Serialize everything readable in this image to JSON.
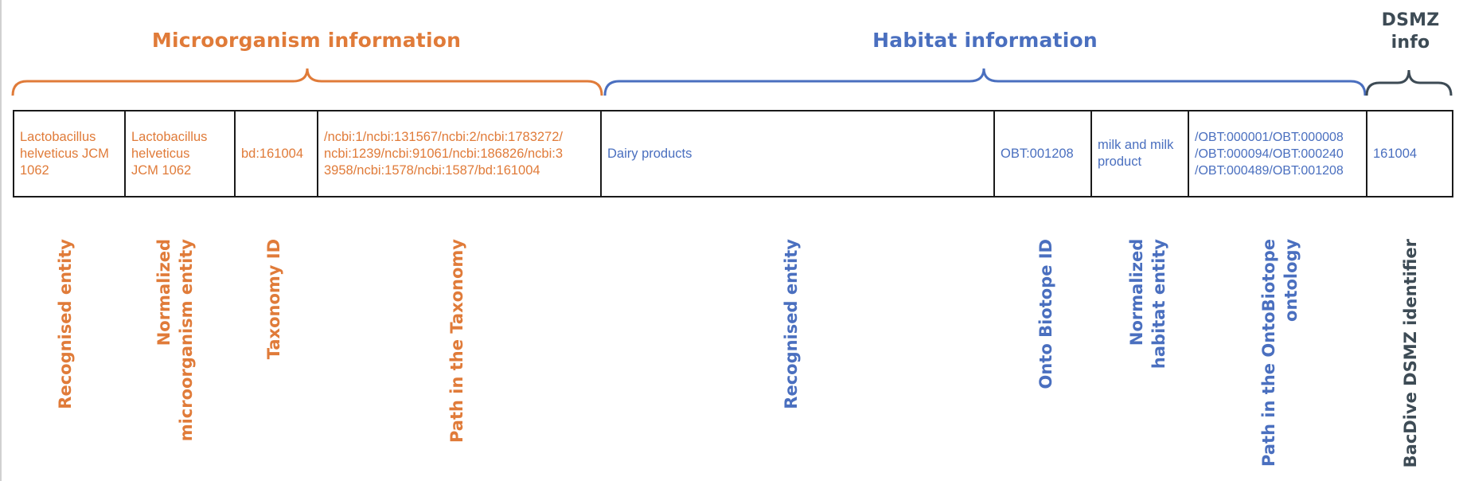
{
  "groups": {
    "microorganism": {
      "title": "Microorganism information",
      "color": "#E07B39"
    },
    "habitat": {
      "title": "Habitat information",
      "color": "#4A6FBF"
    },
    "dsmz": {
      "title_line1": "DSMZ",
      "title_line2": "info",
      "color": "#3D4B55"
    }
  },
  "row": {
    "recognised_entity_micro": {
      "line1": "Lactobacillus",
      "line2": "helveticus JCM",
      "line3": "1062"
    },
    "normalized_micro_entity": {
      "line1": "Lactobacillus",
      "line2": "helveticus",
      "line3": "JCM 1062"
    },
    "taxonomy_id": "bd:161004",
    "taxonomy_path": {
      "line1": "/ncbi:1/ncbi:131567/ncbi:2/ncbi:1783272/",
      "line2": "ncbi:1239/ncbi:91061/ncbi:186826/ncbi:3",
      "line3": "3958/ncbi:1578/ncbi:1587/bd:161004"
    },
    "recognised_entity_habitat": "Dairy products",
    "onto_biotope_id": "OBT:001208",
    "normalized_habitat_entity": {
      "line1": "milk and milk",
      "line2": "product"
    },
    "ontobiotope_path": {
      "line1": "/OBT:000001/OBT:000008",
      "line2": "/OBT:000094/OBT:000240",
      "line3": "/OBT:000489/OBT:001208"
    },
    "bacdive_id": "161004"
  },
  "labels": {
    "recognised_entity_micro": "Recognised entity",
    "normalized_micro_entity": {
      "line1": "Normalized",
      "line2": "microorganism entity"
    },
    "taxonomy_id": "Taxonomy ID",
    "taxonomy_path": "Path in the Taxonomy",
    "recognised_entity_habitat": "Recognised entity",
    "onto_biotope_id": "Onto Biotope ID",
    "normalized_habitat_entity": {
      "line1": "Normalized",
      "line2": "habitat entity"
    },
    "ontobiotope_path": {
      "line1": "Path in the OntoBiotope",
      "line2": "ontology"
    },
    "bacdive_id": "BacDive DSMZ identifier"
  }
}
